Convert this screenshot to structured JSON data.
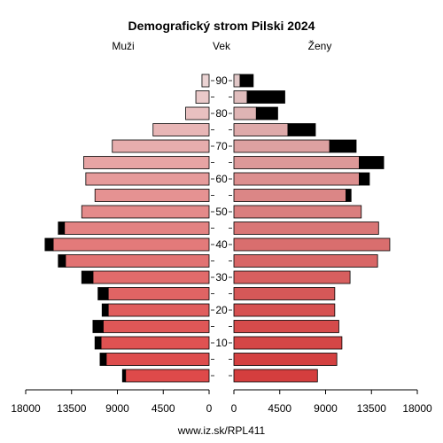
{
  "chart_data": {
    "type": "bar",
    "title": "Demografický strom Pilski 2024",
    "left_label": "Muži",
    "center_label": "Vek",
    "right_label": "Ženy",
    "footer": "www.iz.sk/RPL411",
    "x_ticks_left": [
      "18000",
      "13500",
      "9000",
      "4500",
      "0"
    ],
    "x_ticks_right": [
      "0",
      "4500",
      "9000",
      "13500",
      "18000"
    ],
    "x_max": 18000,
    "age_ticks": [
      90,
      80,
      70,
      60,
      50,
      40,
      30,
      20,
      10
    ],
    "groups": [
      "0-4",
      "5-9",
      "10-14",
      "15-19",
      "20-24",
      "25-29",
      "30-34",
      "35-39",
      "40-44",
      "45-49",
      "50-54",
      "55-59",
      "60-64",
      "65-69",
      "70-74",
      "75-79",
      "80-84",
      "85-89",
      "90+"
    ],
    "men": [
      8200,
      10100,
      10600,
      10400,
      9900,
      9900,
      11400,
      14100,
      15300,
      14200,
      12500,
      11200,
      12100,
      12300,
      9500,
      5500,
      2300,
      1300,
      700
    ],
    "women": [
      8200,
      10100,
      10600,
      10300,
      9900,
      9900,
      11400,
      14100,
      15300,
      14200,
      12500,
      11000,
      12300,
      12300,
      9400,
      5300,
      2200,
      1300,
      600
    ],
    "men_surplus": [
      300,
      600,
      600,
      1000,
      600,
      1000,
      1100,
      700,
      800,
      600,
      0,
      0,
      0,
      0,
      0,
      0,
      0,
      0,
      0
    ],
    "women_surplus": [
      0,
      0,
      0,
      0,
      0,
      0,
      0,
      0,
      0,
      0,
      0,
      500,
      1000,
      2400,
      2600,
      2700,
      2100,
      3700,
      1300
    ],
    "colors": {
      "young": "#de4a4a",
      "old": "#ebd3d3",
      "surplus": "#000000"
    }
  }
}
